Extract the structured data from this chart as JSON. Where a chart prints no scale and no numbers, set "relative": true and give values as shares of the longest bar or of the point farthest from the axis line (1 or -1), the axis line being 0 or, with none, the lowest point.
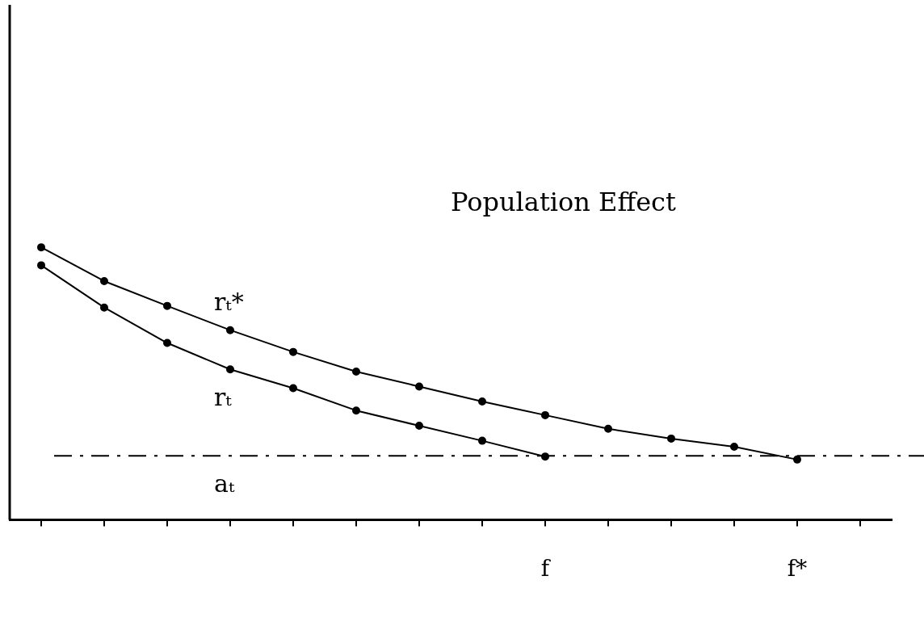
{
  "chart_data": {
    "type": "line",
    "relative": true,
    "annotations": [
      "Population Effect"
    ],
    "categories": [
      null,
      null,
      null,
      null,
      null,
      null,
      null,
      null,
      "f",
      null,
      null,
      null,
      "f*",
      null
    ],
    "series": [
      {
        "name": "rₜ*",
        "color": "#000000",
        "values": [
          1,
          0.876,
          0.785,
          0.696,
          0.616,
          0.544,
          0.489,
          0.434,
          0.384,
          0.334,
          0.298,
          0.268,
          0.221,
          null
        ]
      },
      {
        "name": "rₜ",
        "color": "#000000",
        "values": [
          0.934,
          0.779,
          0.649,
          0.552,
          0.483,
          0.401,
          0.345,
          0.29,
          0.232,
          null,
          null,
          null,
          null,
          null
        ]
      }
    ],
    "ref_lines": [
      {
        "axis": "y",
        "value": 0.235,
        "label": "aₜ",
        "line_style": "dashed",
        "color": "#000000"
      }
    ],
    "legend": false,
    "grid": false,
    "marker": "circle",
    "line_style": "solid"
  }
}
